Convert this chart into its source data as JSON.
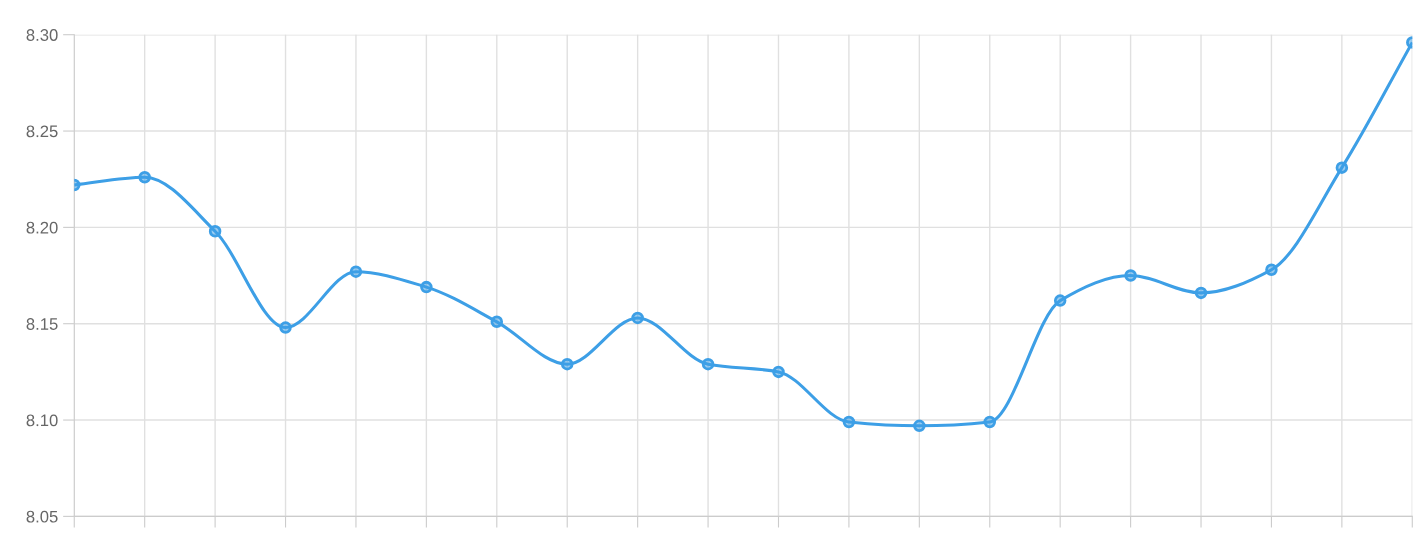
{
  "chart_data": {
    "type": "line",
    "categories": [
      null,
      null,
      null,
      null,
      null,
      null,
      null,
      null,
      null,
      null,
      null,
      null,
      null,
      null,
      null,
      null,
      null,
      null,
      null,
      null
    ],
    "series": [
      {
        "color": "#3d9fe6",
        "values": [
          8.222,
          8.226,
          8.198,
          8.148,
          8.177,
          8.169,
          8.151,
          8.129,
          8.153,
          8.129,
          8.125,
          8.099,
          8.097,
          8.099,
          8.162,
          8.175,
          8.166,
          8.178,
          8.231,
          8.296
        ]
      }
    ],
    "ylim": [
      8.05,
      8.3
    ],
    "yticks": [
      {
        "value": 8.05,
        "label": "8.05"
      },
      {
        "value": 8.1,
        "label": "8.10"
      },
      {
        "value": 8.15,
        "label": "8.15"
      },
      {
        "value": 8.2,
        "label": "8.20"
      },
      {
        "value": 8.25,
        "label": "8.25"
      },
      {
        "value": 8.3,
        "label": "8.30"
      }
    ],
    "grid": true,
    "marker": "circle",
    "line_style": "solid",
    "tick_labels": "y",
    "legend": false
  }
}
